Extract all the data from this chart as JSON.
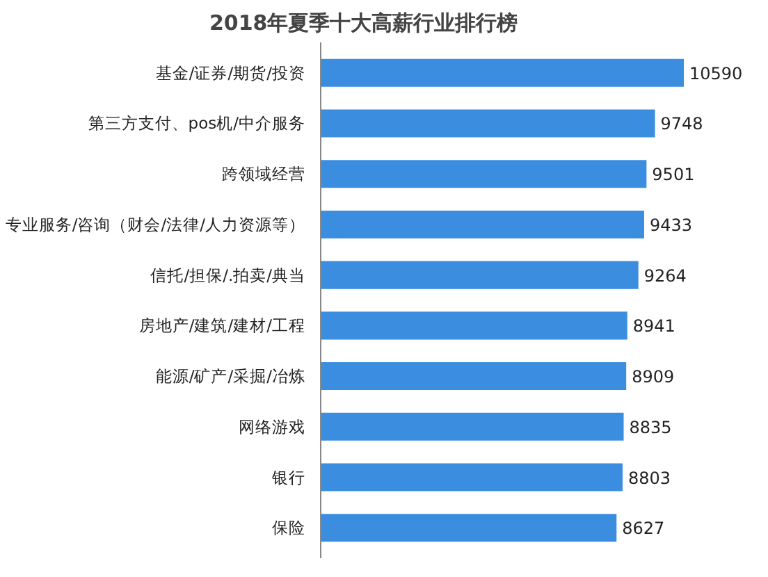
{
  "chart_data": {
    "type": "bar",
    "orientation": "horizontal",
    "title": "2018年夏季十大高薪行业排行榜",
    "categories": [
      "基金/证券/期货/投资",
      "第三方支付、pos机/中介服务",
      "跨领域经营",
      "专业服务/咨询（财会/法律/人力资源等）",
      "信托/担保/.拍卖/典当",
      "房地产/建筑/建材/工程",
      "能源/矿产/采掘/冶炼",
      "网络游戏",
      "银行",
      "保险"
    ],
    "values": [
      10590,
      9748,
      9501,
      9433,
      9264,
      8941,
      8909,
      8835,
      8803,
      8627
    ],
    "color": "#3b8de0",
    "data_labels": true,
    "tick_labels": "y",
    "grid": false
  }
}
